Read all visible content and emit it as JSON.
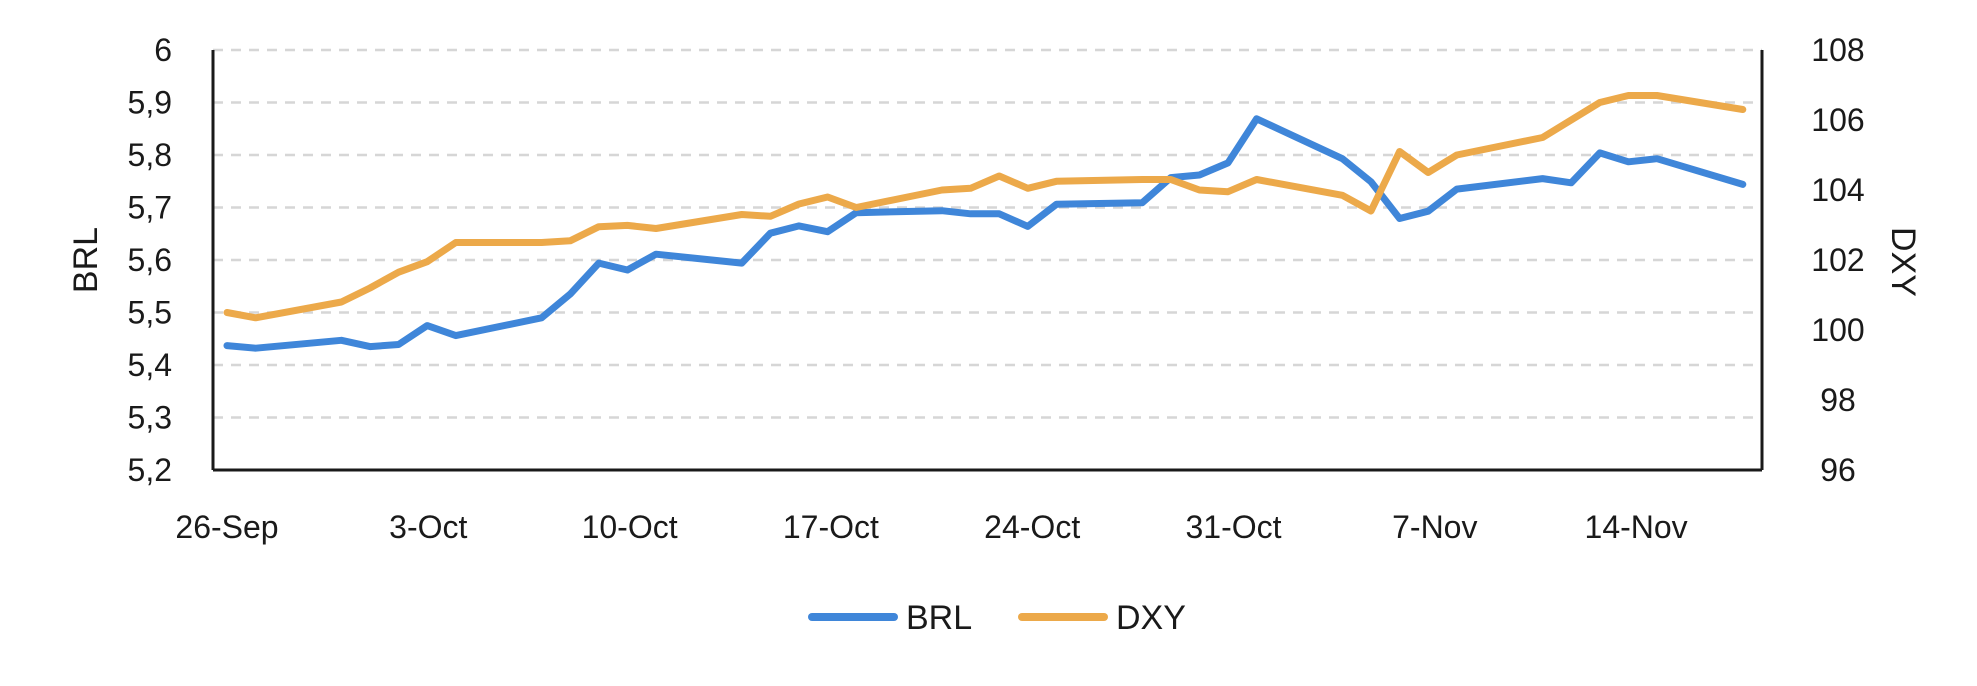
{
  "chart_data": {
    "type": "line",
    "x_tick_labels": [
      "26-Sep",
      "3-Oct",
      "10-Oct",
      "17-Oct",
      "24-Oct",
      "31-Oct",
      "7-Nov",
      "14-Nov"
    ],
    "y_left": {
      "label": "BRL",
      "range": [
        5.2,
        6.0
      ],
      "tick_labels": [
        "5,2",
        "5,3",
        "5,4",
        "5,5",
        "5,6",
        "5,7",
        "5,8",
        "5,9",
        "6"
      ]
    },
    "y_right": {
      "label": "DXY",
      "range": [
        96,
        108
      ],
      "tick_labels": [
        "96",
        "98",
        "100",
        "102",
        "104",
        "106",
        "108"
      ]
    },
    "grid": "horizontal-dashed",
    "legend_position": "bottom-center",
    "series": [
      {
        "name": "BRL",
        "axis": "left",
        "color": "#3f86d9",
        "points": [
          [
            "2024-09-26",
            5.437
          ],
          [
            "2024-09-27",
            5.432
          ],
          [
            "2024-09-30",
            5.447
          ],
          [
            "2024-10-01",
            5.435
          ],
          [
            "2024-10-02",
            5.439
          ],
          [
            "2024-10-03",
            5.475
          ],
          [
            "2024-10-04",
            5.456
          ],
          [
            "2024-10-07",
            5.49
          ],
          [
            "2024-10-08",
            5.535
          ],
          [
            "2024-10-09",
            5.594
          ],
          [
            "2024-10-10",
            5.581
          ],
          [
            "2024-10-11",
            5.611
          ],
          [
            "2024-10-14",
            5.594
          ],
          [
            "2024-10-15",
            5.651
          ],
          [
            "2024-10-16",
            5.665
          ],
          [
            "2024-10-17",
            5.654
          ],
          [
            "2024-10-18",
            5.69
          ],
          [
            "2024-10-21",
            5.694
          ],
          [
            "2024-10-22",
            5.688
          ],
          [
            "2024-10-23",
            5.688
          ],
          [
            "2024-10-24",
            5.664
          ],
          [
            "2024-10-25",
            5.706
          ],
          [
            "2024-10-28",
            5.709
          ],
          [
            "2024-10-29",
            5.757
          ],
          [
            "2024-10-30",
            5.762
          ],
          [
            "2024-10-31",
            5.785
          ],
          [
            "2024-11-01",
            5.869
          ],
          [
            "2024-11-04",
            5.793
          ],
          [
            "2024-11-05",
            5.749
          ],
          [
            "2024-11-06",
            5.679
          ],
          [
            "2024-11-07",
            5.693
          ],
          [
            "2024-11-08",
            5.735
          ],
          [
            "2024-11-11",
            5.755
          ],
          [
            "2024-11-12",
            5.747
          ],
          [
            "2024-11-13",
            5.804
          ],
          [
            "2024-11-14",
            5.787
          ],
          [
            "2024-11-15",
            5.793
          ],
          [
            "2024-11-18",
            5.744
          ]
        ]
      },
      {
        "name": "DXY",
        "axis": "right",
        "color": "#eca94a",
        "points": [
          [
            "2024-09-26",
            100.5
          ],
          [
            "2024-09-27",
            100.35
          ],
          [
            "2024-09-30",
            100.8
          ],
          [
            "2024-10-01",
            101.2
          ],
          [
            "2024-10-02",
            101.65
          ],
          [
            "2024-10-03",
            101.95
          ],
          [
            "2024-10-04",
            102.5
          ],
          [
            "2024-10-07",
            102.5
          ],
          [
            "2024-10-08",
            102.55
          ],
          [
            "2024-10-09",
            102.95
          ],
          [
            "2024-10-10",
            102.99
          ],
          [
            "2024-10-11",
            102.9
          ],
          [
            "2024-10-14",
            103.3
          ],
          [
            "2024-10-15",
            103.25
          ],
          [
            "2024-10-16",
            103.6
          ],
          [
            "2024-10-17",
            103.8
          ],
          [
            "2024-10-18",
            103.5
          ],
          [
            "2024-10-21",
            104.0
          ],
          [
            "2024-10-22",
            104.05
          ],
          [
            "2024-10-23",
            104.4
          ],
          [
            "2024-10-24",
            104.05
          ],
          [
            "2024-10-25",
            104.25
          ],
          [
            "2024-10-28",
            104.3
          ],
          [
            "2024-10-29",
            104.3
          ],
          [
            "2024-10-30",
            104.0
          ],
          [
            "2024-10-31",
            103.95
          ],
          [
            "2024-11-01",
            104.3
          ],
          [
            "2024-11-04",
            103.85
          ],
          [
            "2024-11-05",
            103.4
          ],
          [
            "2024-11-06",
            105.1
          ],
          [
            "2024-11-07",
            104.5
          ],
          [
            "2024-11-08",
            105.0
          ],
          [
            "2024-11-11",
            105.5
          ],
          [
            "2024-11-12",
            106.0
          ],
          [
            "2024-11-13",
            106.5
          ],
          [
            "2024-11-14",
            106.7
          ],
          [
            "2024-11-15",
            106.7
          ],
          [
            "2024-11-18",
            106.3
          ]
        ]
      }
    ]
  }
}
